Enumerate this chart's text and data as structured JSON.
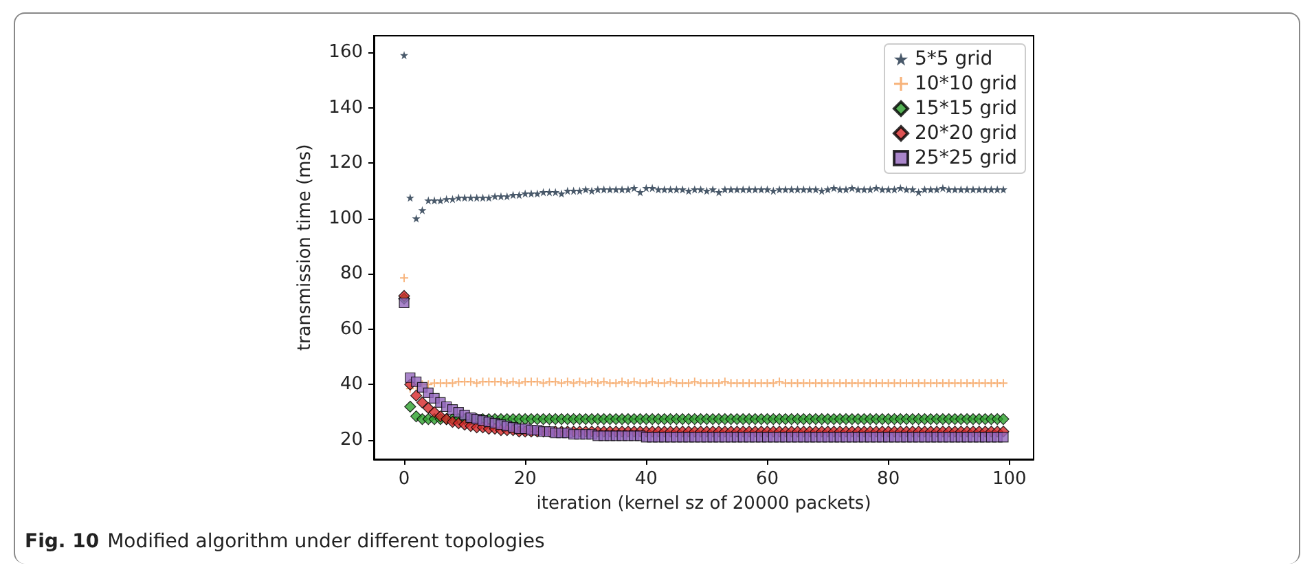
{
  "chart_data": {
    "type": "scatter",
    "xlabel": "iteration (kernel sz of 20000 packets)",
    "ylabel": "transmission time (ms)",
    "annotations": [
      "Fig. 10",
      "Modified algorithm under different topologies"
    ],
    "x": [
      0,
      1,
      2,
      3,
      4,
      5,
      6,
      7,
      8,
      9,
      10,
      11,
      12,
      13,
      14,
      15,
      16,
      17,
      18,
      19,
      20,
      21,
      22,
      23,
      24,
      25,
      26,
      27,
      28,
      29,
      30,
      31,
      32,
      33,
      34,
      35,
      36,
      37,
      38,
      39,
      40,
      41,
      42,
      43,
      44,
      45,
      46,
      47,
      48,
      49,
      50,
      51,
      52,
      53,
      54,
      55,
      56,
      57,
      58,
      59,
      60,
      61,
      62,
      63,
      64,
      65,
      66,
      67,
      68,
      69,
      70,
      71,
      72,
      73,
      74,
      75,
      76,
      77,
      78,
      79,
      80,
      81,
      82,
      83,
      84,
      85,
      86,
      87,
      88,
      89,
      90,
      91,
      92,
      93,
      94,
      95,
      96,
      97,
      98,
      99
    ],
    "xlim": [
      -5,
      104
    ],
    "xticks": [
      0,
      20,
      40,
      60,
      80,
      100
    ],
    "ylim": [
      13,
      166
    ],
    "yticks": [
      20,
      40,
      60,
      80,
      100,
      120,
      140,
      160
    ],
    "grid": false,
    "legend": "top right",
    "series": [
      {
        "name": "5*5 grid",
        "color": "#1c2f45",
        "marker": "star",
        "values": [
          159,
          107.5,
          100,
          103,
          106.5,
          106.5,
          106.5,
          107,
          107,
          107.5,
          107.5,
          107.5,
          107.5,
          107.5,
          107.5,
          108,
          108,
          108,
          108.5,
          108.5,
          109,
          109,
          109,
          109.5,
          109.5,
          109.5,
          109,
          110,
          110,
          110,
          110.5,
          110,
          110.5,
          110.5,
          110.5,
          110.5,
          110.5,
          110.5,
          111,
          109.5,
          111,
          111,
          110.5,
          110.5,
          110.5,
          110.5,
          110.5,
          110,
          110.5,
          110.5,
          110,
          110.5,
          109.5,
          110.5,
          110.5,
          110.5,
          110.5,
          110.5,
          110.5,
          110.5,
          110.5,
          110,
          110.5,
          110.5,
          110.5,
          110.5,
          110.5,
          110.5,
          110.5,
          110,
          110.5,
          111,
          110.5,
          110.5,
          111,
          110.5,
          110.5,
          110.5,
          111,
          110.5,
          110.5,
          110.5,
          111,
          110.5,
          110.5,
          109.5,
          110.5,
          110.5,
          110.5,
          111,
          110.5,
          110.5,
          110.5,
          110.5,
          110.5,
          110.5,
          110.5,
          110.5,
          110.5,
          110.5
        ]
      },
      {
        "name": "10*10 grid",
        "color": "#f5a05a",
        "marker": "cross",
        "values": [
          78.5,
          38.5,
          39.5,
          40,
          40,
          40.5,
          40.5,
          40.5,
          40.5,
          41,
          41,
          41,
          40.5,
          41,
          41,
          41,
          41,
          40.5,
          41,
          40.5,
          41,
          41,
          41,
          40.5,
          41,
          41,
          40.5,
          41,
          40.5,
          41,
          40.5,
          41,
          40.5,
          41,
          40.5,
          40.5,
          41,
          40.5,
          41,
          40.5,
          40.5,
          41,
          40.5,
          40.5,
          41,
          40.5,
          40.5,
          40.5,
          41,
          40.5,
          40.5,
          40.5,
          40.5,
          41,
          40.5,
          40.5,
          40.5,
          40.5,
          40.5,
          40.5,
          40.5,
          40.5,
          41,
          40.5,
          40.5,
          40.5,
          40.5,
          40.5,
          40.5,
          40.5,
          40.5,
          40.5,
          40.5,
          40.5,
          40.5,
          40.5,
          40.5,
          40.5,
          40.5,
          40.5,
          40.5,
          40.5,
          40.5,
          40.5,
          40.5,
          40.5,
          40.5,
          40.5,
          40.5,
          40.5,
          40.5,
          40.5,
          40.5,
          40.5,
          40.5,
          40.5,
          40.5,
          40.5,
          40.5,
          40.5
        ]
      },
      {
        "name": "15*15 grid",
        "color": "#2ca02c",
        "marker": "diamond",
        "values": [
          71,
          32,
          28.5,
          27.5,
          27.5,
          27.5,
          27.5,
          27.5,
          27.5,
          27.5,
          27.5,
          27.5,
          27.5,
          27.5,
          27.5,
          27.5,
          27.5,
          27.5,
          27.5,
          27.5,
          27.5,
          27.5,
          27.5,
          27.5,
          27.5,
          27.5,
          27.5,
          27.5,
          27.5,
          27.5,
          27.5,
          27.5,
          27.5,
          27.5,
          27.5,
          27.5,
          27.5,
          27.5,
          27.5,
          27.5,
          27.5,
          27.5,
          27.5,
          27.5,
          27.5,
          27.5,
          27.5,
          27.5,
          27.5,
          27.5,
          27.5,
          27.5,
          27.5,
          27.5,
          27.5,
          27.5,
          27.5,
          27.5,
          27.5,
          27.5,
          27.5,
          27.5,
          27.5,
          27.5,
          27.5,
          27.5,
          27.5,
          27.5,
          27.5,
          27.5,
          27.5,
          27.5,
          27.5,
          27.5,
          27.5,
          27.5,
          27.5,
          27.5,
          27.5,
          27.5,
          27.5,
          27.5,
          27.5,
          27.5,
          27.5,
          27.5,
          27.5,
          27.5,
          27.5,
          27.5,
          27.5,
          27.5,
          27.5,
          27.5,
          27.5,
          27.5,
          27.5,
          27.5,
          27.5,
          27.5
        ]
      },
      {
        "name": "20*20 grid",
        "color": "#d62728",
        "marker": "diamond",
        "values": [
          72,
          40,
          36,
          33.5,
          31.5,
          30,
          28.5,
          27.5,
          26.5,
          26,
          25.5,
          25,
          24.5,
          24.5,
          24,
          24,
          23.5,
          23.5,
          23.5,
          23,
          23,
          23,
          23,
          23,
          23,
          23,
          23,
          23,
          23,
          23,
          23,
          23,
          23,
          23,
          23,
          23,
          23,
          23,
          23,
          23,
          23,
          23,
          23,
          23,
          23,
          23,
          23,
          23,
          23,
          23,
          23,
          23,
          23,
          23,
          23,
          23,
          23,
          23,
          23,
          23,
          23,
          23,
          23,
          23,
          23,
          23,
          23,
          23,
          23,
          23,
          23,
          23,
          23,
          23,
          23,
          23,
          23,
          23,
          23,
          23,
          23,
          23,
          23,
          23,
          23,
          23,
          23,
          23,
          23,
          23,
          23,
          23,
          23,
          23,
          23,
          23,
          23,
          23,
          23,
          23
        ]
      },
      {
        "name": "25*25 grid",
        "color": "#9467bd",
        "marker": "square",
        "values": [
          69.5,
          42.5,
          41,
          39,
          37,
          35,
          33.5,
          32,
          31,
          30,
          29,
          28,
          27.5,
          27,
          26.5,
          26,
          25.5,
          25,
          24.5,
          24,
          24,
          23.5,
          23.5,
          23,
          23,
          22.5,
          22.5,
          22.5,
          22,
          22,
          22,
          22,
          21.5,
          21.5,
          21.5,
          21.5,
          21.5,
          21.5,
          21.5,
          21.5,
          21,
          21,
          21,
          21,
          21,
          21,
          21,
          21,
          21,
          21,
          21,
          21,
          21,
          21,
          21,
          21,
          21,
          21,
          21,
          21,
          21,
          21,
          21,
          21,
          21,
          21,
          21,
          21,
          21,
          21,
          21,
          21,
          21,
          21,
          21,
          21,
          21,
          21,
          21,
          21,
          21,
          21,
          21,
          21,
          21,
          21,
          21,
          21,
          21,
          21,
          21,
          21,
          21,
          21,
          21,
          21,
          21,
          21,
          21,
          21
        ]
      }
    ]
  }
}
